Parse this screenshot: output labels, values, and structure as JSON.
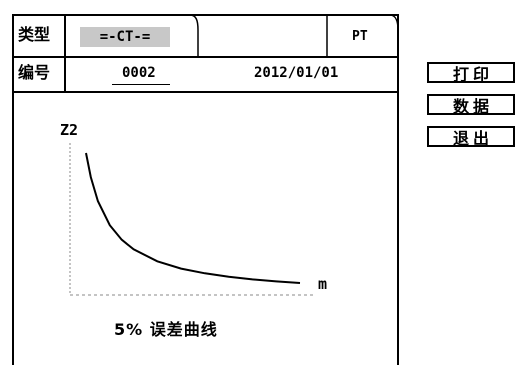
{
  "header": {
    "type_label": "类型",
    "type_value": "=-CT-=",
    "pt_tab": "PT",
    "number_label": "编号",
    "number_value": "0002",
    "date": "2012/01/01"
  },
  "buttons": {
    "print": "打印",
    "data": "数据",
    "exit": "退出"
  },
  "chart_data": {
    "type": "line",
    "title": "5% 误差曲线",
    "xlabel": "m",
    "ylabel": "Z2",
    "grid": false,
    "series": [
      {
        "x": [
          1,
          1.2,
          1.5,
          2,
          2.5,
          3,
          4,
          5,
          6,
          7,
          8,
          9,
          10
        ],
        "values": [
          100,
          83.3,
          66.7,
          50,
          40,
          33.3,
          25,
          20,
          16.7,
          14.3,
          12.5,
          11.1,
          10
        ]
      }
    ]
  }
}
